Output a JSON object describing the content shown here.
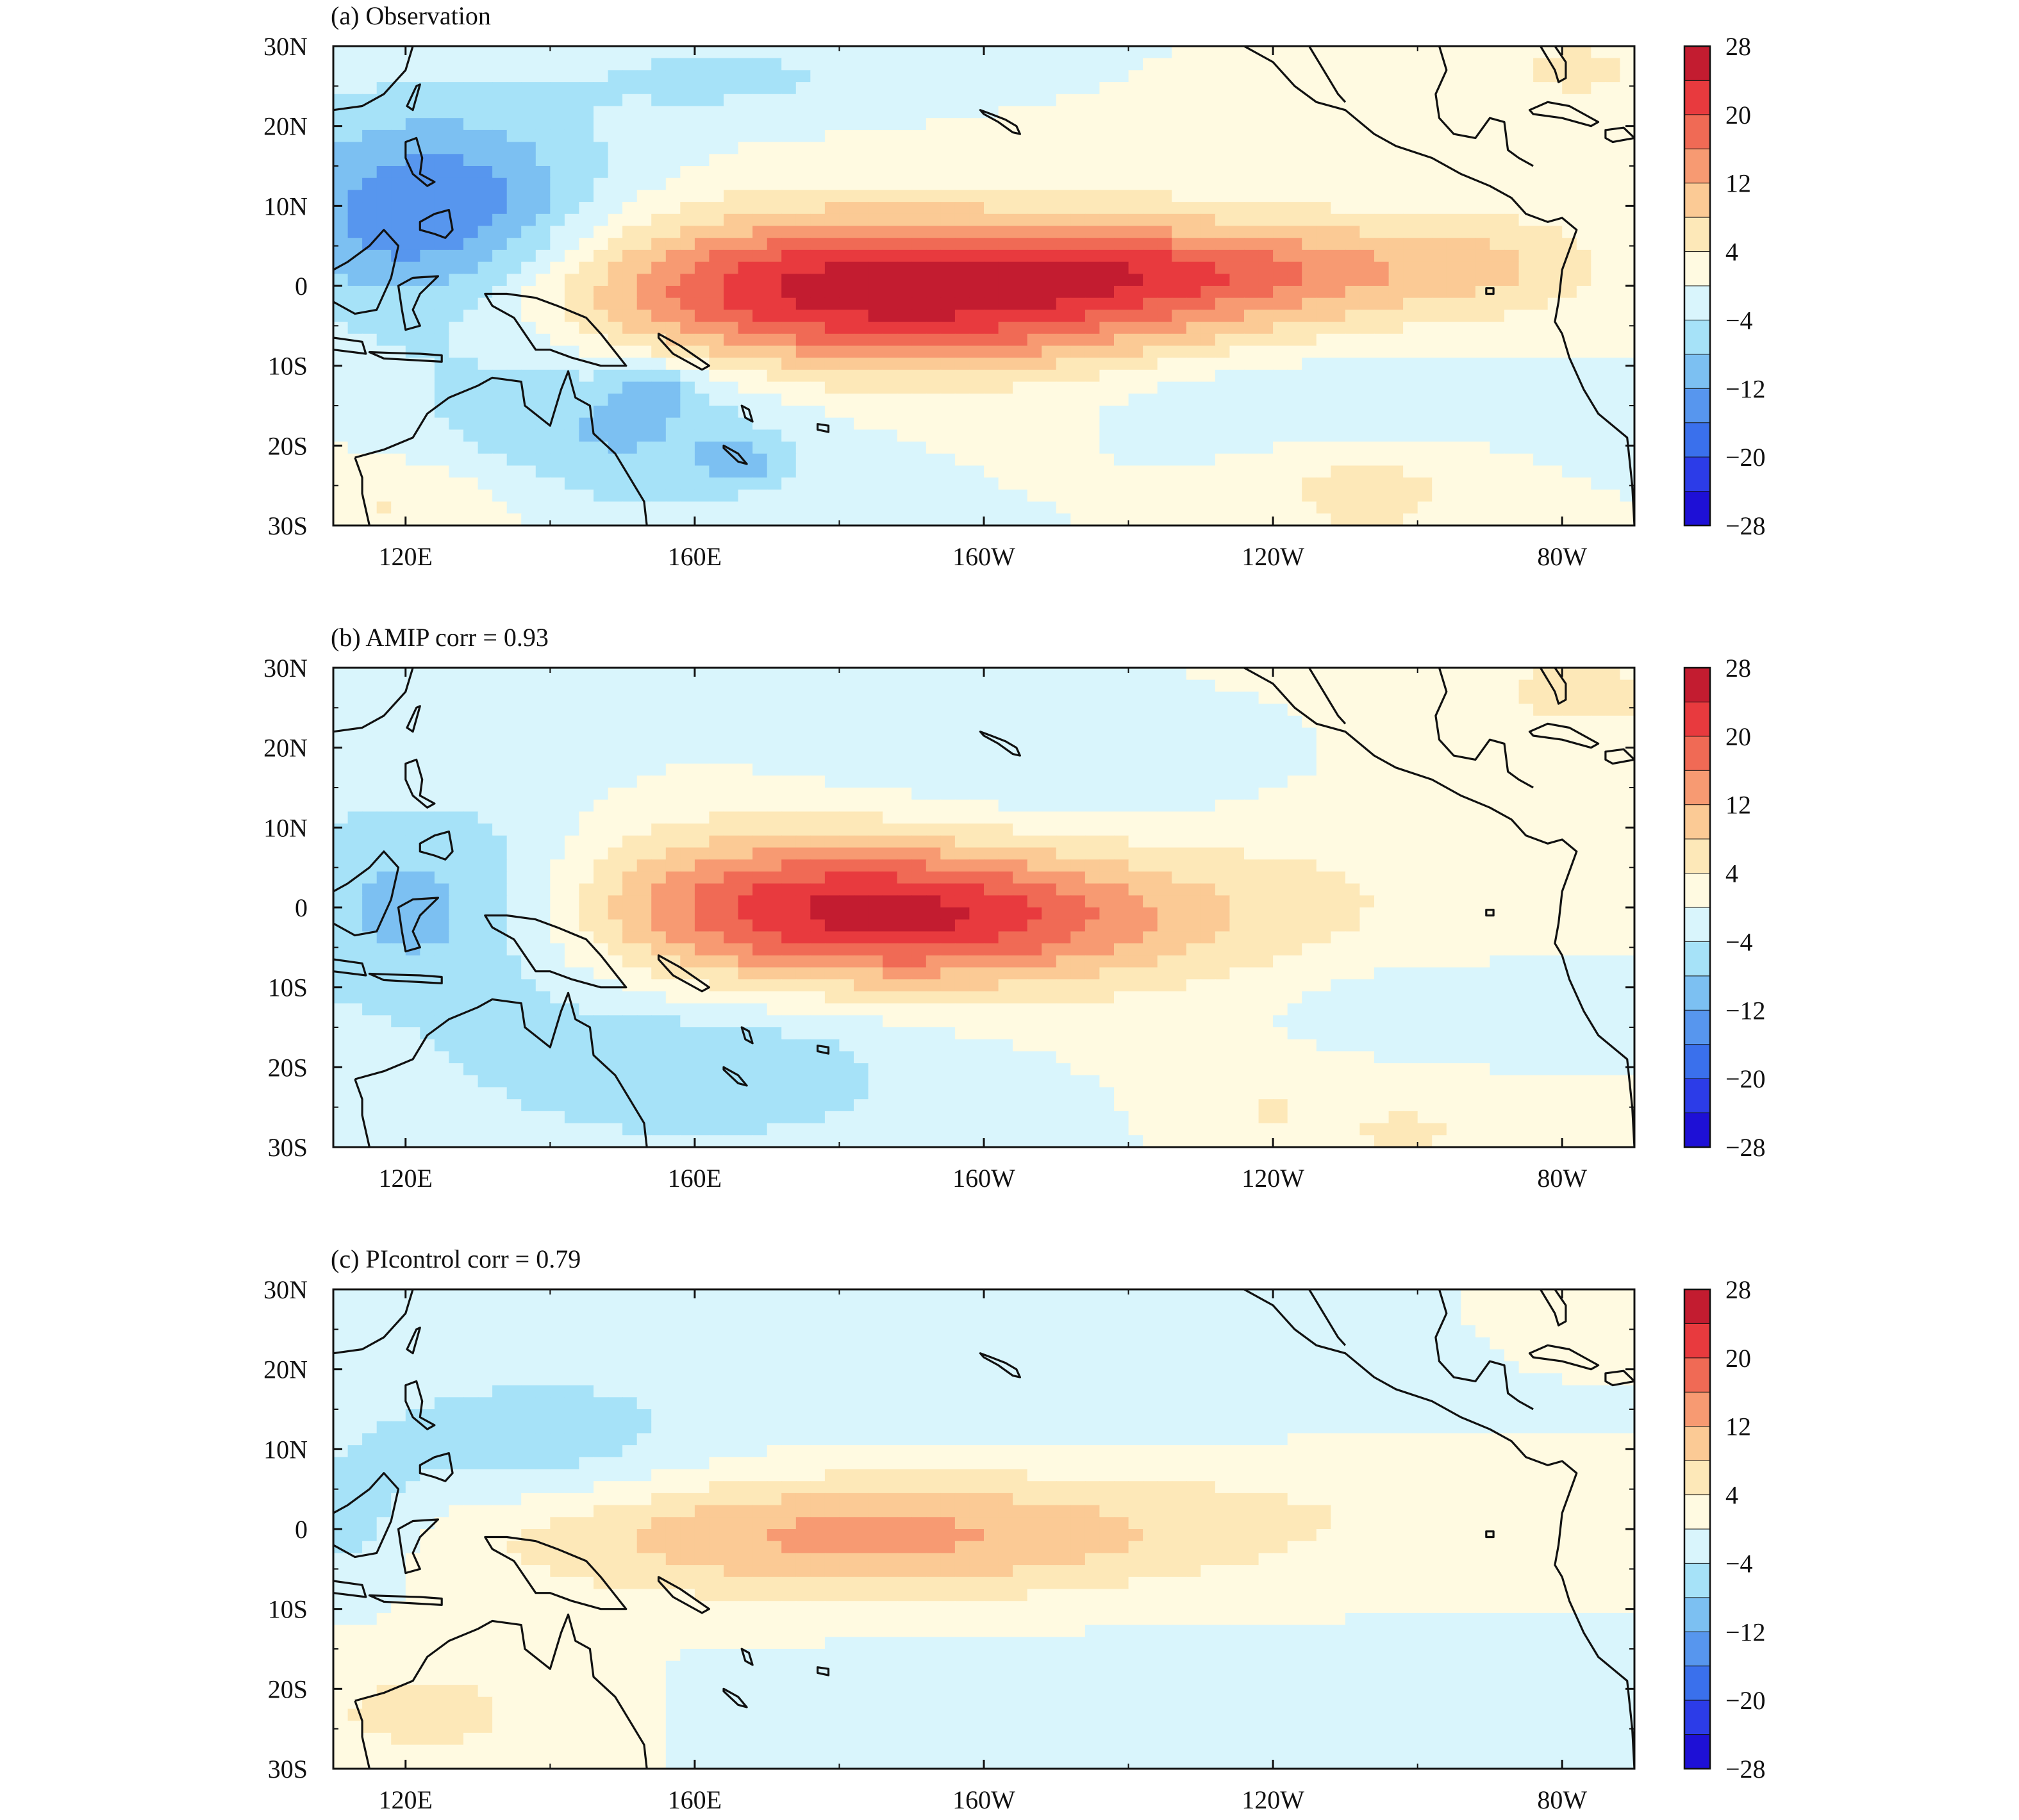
{
  "figure": {
    "panels": [
      {
        "key": "obs",
        "title": "(a) Observation"
      },
      {
        "key": "amip",
        "title": "(b) AMIP corr = 0.93"
      },
      {
        "key": "pic",
        "title": "(c) PIcontrol corr = 0.79"
      }
    ]
  },
  "chart_data": {
    "type": "heatmap",
    "subtype": "filled-contour-map",
    "lon_range": [
      110,
      290
    ],
    "lat_range": [
      -30,
      30
    ],
    "y_ticks": [
      {
        "lat": 30,
        "label": "30N"
      },
      {
        "lat": 20,
        "label": "20N"
      },
      {
        "lat": 10,
        "label": "10N"
      },
      {
        "lat": 0,
        "label": "0"
      },
      {
        "lat": -10,
        "label": "10S"
      },
      {
        "lat": -20,
        "label": "20S"
      },
      {
        "lat": -30,
        "label": "30S"
      }
    ],
    "x_ticks": [
      {
        "lon": 120,
        "label": "120E"
      },
      {
        "lon": 160,
        "label": "160E"
      },
      {
        "lon": 200,
        "label": "160W"
      },
      {
        "lon": 240,
        "label": "120W"
      },
      {
        "lon": 280,
        "label": "80W"
      }
    ],
    "colorbar": {
      "labels": [
        "28",
        "20",
        "12",
        "4",
        "−4",
        "−12",
        "−20",
        "−28"
      ],
      "levels": [
        -28,
        -24,
        -20,
        -16,
        -12,
        -8,
        -4,
        0,
        4,
        8,
        12,
        16,
        20,
        24,
        28
      ],
      "colors": [
        "#1e10d6",
        "#2c3ce8",
        "#3a70ec",
        "#5796ee",
        "#7cc0f2",
        "#a6e2f8",
        "#d9f5fc",
        "#fffae1",
        "#fde8b8",
        "#fbca95",
        "#f79a72",
        "#f06a55",
        "#e83a3e",
        "#c31c30"
      ]
    },
    "panels": [
      {
        "key": "obs",
        "correlation": null,
        "features": [
          {
            "type": "pos",
            "lon": 187,
            "lat": -1,
            "rlon": 55,
            "rlat": 10,
            "amp": 26
          },
          {
            "type": "pos",
            "lon": 218,
            "lat": 2,
            "rlon": 36,
            "rlat": 4.5,
            "amp": 6
          },
          {
            "type": "pos",
            "lon": 252,
            "lat": 3,
            "rlon": 30,
            "rlat": 6,
            "amp": 5
          },
          {
            "type": "pos",
            "lon": 272,
            "lat": 3,
            "rlon": 12,
            "rlat": 7,
            "amp": 3
          },
          {
            "type": "pos",
            "lon": 253,
            "lat": -26,
            "rlon": 12,
            "rlat": 5,
            "amp": 7
          },
          {
            "type": "pos",
            "lon": 282,
            "lat": 27,
            "rlon": 12,
            "rlat": 5,
            "amp": 5
          },
          {
            "type": "pos",
            "lon": 120,
            "lat": -27,
            "rlon": 20,
            "rlat": 6,
            "amp": 5
          },
          {
            "type": "neg",
            "lon": 124,
            "lat": 7,
            "rlon": 24,
            "rlat": 15,
            "amp": 18
          },
          {
            "type": "neg",
            "lon": 150,
            "lat": -17,
            "rlon": 25,
            "rlat": 12,
            "amp": 9
          },
          {
            "type": "neg",
            "lon": 240,
            "lat": -12,
            "rlon": 35,
            "rlat": 6,
            "amp": 5
          },
          {
            "type": "neg",
            "lon": 165,
            "lat": 26,
            "rlon": 22,
            "rlat": 5,
            "amp": 5
          },
          {
            "type": "neg",
            "lon": 155,
            "lat": -13,
            "rlon": 6,
            "rlat": 3,
            "amp": 6
          },
          {
            "type": "neg",
            "lon": 167,
            "lat": -22,
            "rlon": 6,
            "rlat": 3,
            "amp": 6
          }
        ]
      },
      {
        "key": "amip",
        "correlation": 0.93,
        "features": [
          {
            "type": "pos",
            "lon": 178,
            "lat": 0,
            "rlon": 40,
            "rlat": 10,
            "amp": 21
          },
          {
            "type": "pos",
            "lon": 200,
            "lat": -2,
            "rlon": 30,
            "rlat": 7,
            "amp": 7
          },
          {
            "type": "pos",
            "lon": 283,
            "lat": 27,
            "rlon": 12,
            "rlat": 5,
            "amp": 6
          },
          {
            "type": "pos",
            "lon": 258,
            "lat": -28,
            "rlon": 8,
            "rlat": 3,
            "amp": 6
          },
          {
            "type": "pos",
            "lon": 240,
            "lat": -25,
            "rlon": 4,
            "rlat": 2,
            "amp": 6
          },
          {
            "type": "pos",
            "lon": 240,
            "lat": 5,
            "rlon": 40,
            "rlat": 18,
            "amp": 4
          },
          {
            "type": "neg",
            "lon": 125,
            "lat": 0,
            "rlon": 24,
            "rlat": 13,
            "amp": 12
          },
          {
            "type": "neg",
            "lon": 160,
            "lat": -20,
            "rlon": 32,
            "rlat": 10,
            "amp": 8
          },
          {
            "type": "neg",
            "lon": 215,
            "lat": 15,
            "rlon": 38,
            "rlat": 10,
            "amp": 5
          },
          {
            "type": "neg",
            "lon": 265,
            "lat": -12,
            "rlon": 25,
            "rlat": 5,
            "amp": 5
          }
        ]
      },
      {
        "key": "pic",
        "correlation": 0.79,
        "features": [
          {
            "type": "pos",
            "lon": 176,
            "lat": -1,
            "rlon": 44,
            "rlat": 7.5,
            "amp": 11
          },
          {
            "type": "pos",
            "lon": 210,
            "lat": 0,
            "rlon": 40,
            "rlat": 8,
            "amp": 4
          },
          {
            "type": "pos",
            "lon": 255,
            "lat": 3,
            "rlon": 35,
            "rlat": 7,
            "amp": 2
          },
          {
            "type": "pos",
            "lon": 123,
            "lat": -23,
            "rlon": 22,
            "rlat": 8,
            "amp": 5
          },
          {
            "type": "pos",
            "lon": 283,
            "lat": 27,
            "rlon": 12,
            "rlat": 6,
            "amp": 4
          },
          {
            "type": "neg",
            "lon": 135,
            "lat": 10,
            "rlon": 25,
            "rlat": 8,
            "amp": 6
          },
          {
            "type": "neg",
            "lon": 113,
            "lat": 0,
            "rlon": 8,
            "rlat": 8,
            "amp": 6
          },
          {
            "type": "neg",
            "lon": 190,
            "lat": 20,
            "rlon": 70,
            "rlat": 10,
            "amp": 3
          },
          {
            "type": "neg",
            "lon": 220,
            "lat": -22,
            "rlon": 50,
            "rlat": 8,
            "amp": 3
          }
        ]
      }
    ]
  }
}
